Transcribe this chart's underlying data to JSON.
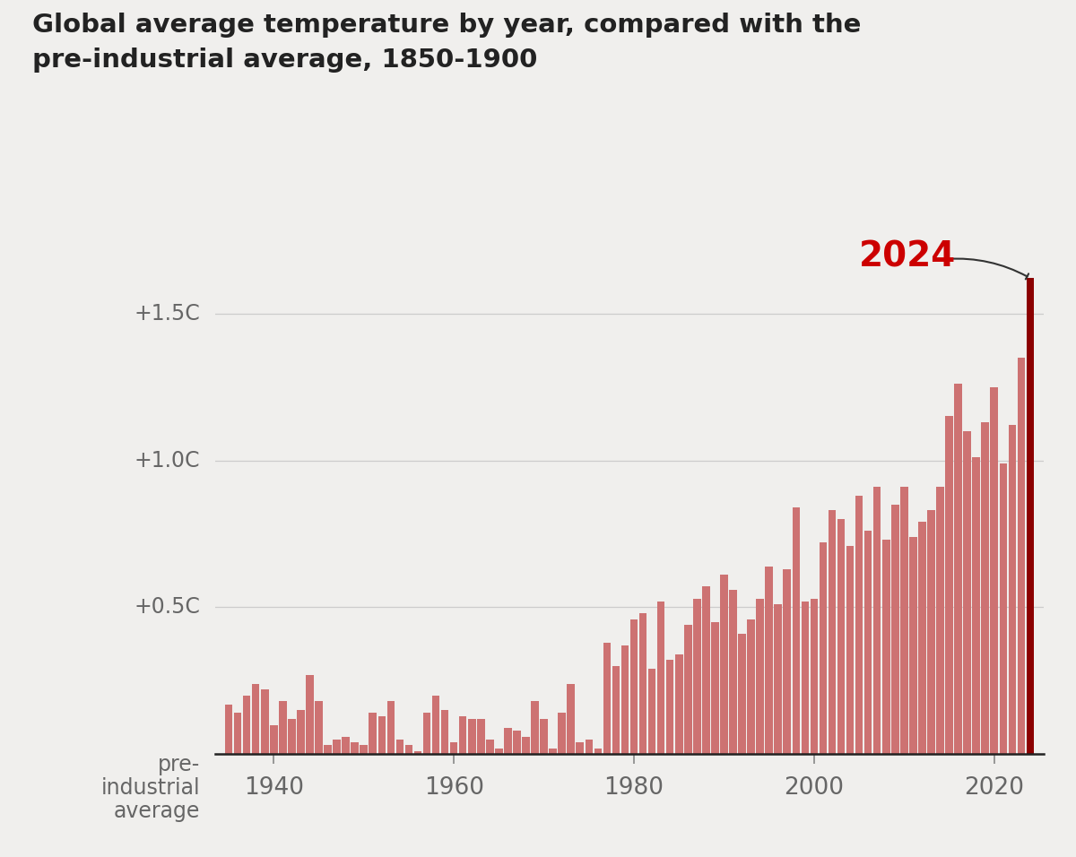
{
  "title_line1": "Global average temperature by year, compared with the",
  "title_line2": "pre-industrial average, 1850-1900",
  "background_color": "#f0efed",
  "bar_color": "#cd7272",
  "highlight_color": "#8b0000",
  "annotation_label": "2024",
  "annotation_color": "#cc0000",
  "years": [
    1935,
    1936,
    1937,
    1938,
    1939,
    1940,
    1941,
    1942,
    1943,
    1944,
    1945,
    1946,
    1947,
    1948,
    1949,
    1950,
    1951,
    1952,
    1953,
    1954,
    1955,
    1956,
    1957,
    1958,
    1959,
    1960,
    1961,
    1962,
    1963,
    1964,
    1965,
    1966,
    1967,
    1968,
    1969,
    1970,
    1971,
    1972,
    1973,
    1974,
    1975,
    1976,
    1977,
    1978,
    1979,
    1980,
    1981,
    1982,
    1983,
    1984,
    1985,
    1986,
    1987,
    1988,
    1989,
    1990,
    1991,
    1992,
    1993,
    1994,
    1995,
    1996,
    1997,
    1998,
    1999,
    2000,
    2001,
    2002,
    2003,
    2004,
    2005,
    2006,
    2007,
    2008,
    2009,
    2010,
    2011,
    2012,
    2013,
    2014,
    2015,
    2016,
    2017,
    2018,
    2019,
    2020,
    2021,
    2022,
    2023,
    2024
  ],
  "anomalies": [
    0.17,
    0.14,
    0.2,
    0.24,
    0.22,
    0.1,
    0.18,
    0.12,
    0.15,
    0.27,
    0.18,
    0.03,
    0.05,
    0.06,
    0.04,
    0.03,
    0.14,
    0.13,
    0.18,
    0.05,
    0.03,
    0.01,
    0.14,
    0.2,
    0.15,
    0.04,
    0.13,
    0.12,
    0.12,
    0.05,
    0.02,
    0.09,
    0.08,
    0.06,
    0.18,
    0.12,
    0.02,
    0.14,
    0.24,
    0.04,
    0.05,
    0.02,
    0.38,
    0.3,
    0.37,
    0.46,
    0.48,
    0.29,
    0.52,
    0.32,
    0.34,
    0.44,
    0.53,
    0.57,
    0.45,
    0.61,
    0.56,
    0.41,
    0.46,
    0.53,
    0.64,
    0.51,
    0.63,
    0.84,
    0.52,
    0.53,
    0.72,
    0.83,
    0.8,
    0.71,
    0.88,
    0.76,
    0.91,
    0.73,
    0.85,
    0.91,
    0.74,
    0.79,
    0.83,
    0.91,
    1.15,
    1.26,
    1.1,
    1.01,
    1.13,
    1.25,
    0.99,
    1.12,
    1.35,
    1.62
  ],
  "ytick_positions": [
    0,
    0.5,
    1.0,
    1.5
  ],
  "ytick_labels": [
    "pre-\nindustrial\naverage",
    "+0.5C",
    "+1.0C",
    "+1.5C"
  ],
  "xtick_positions": [
    1940,
    1960,
    1980,
    2000,
    2020
  ],
  "ylim": [
    0,
    1.75
  ],
  "xlim": [
    1933.5,
    2025.5
  ]
}
